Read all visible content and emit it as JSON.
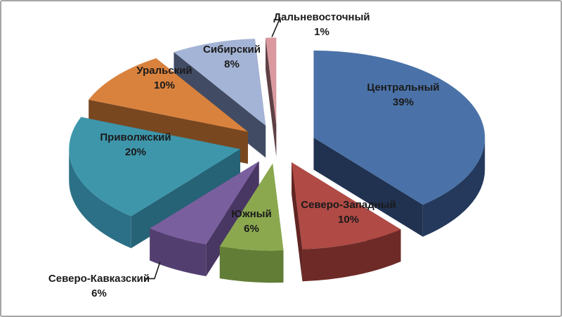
{
  "frame": {
    "background_color": "#FFFFFF",
    "border_color": "#A6A6A6"
  },
  "chart_data": {
    "type": "pie",
    "style": "3d-exploded",
    "title": "",
    "unit": "%",
    "legend": "none",
    "labels_format": "name + percent on slice",
    "slices": [
      {
        "key": "centralny",
        "label": "Центральный",
        "value": 39,
        "percent_label": "39%",
        "color_top": "#4A72A8",
        "color_side": "#24395B"
      },
      {
        "key": "severo-zapadny",
        "label": "Северо-Западный",
        "value": 10,
        "percent_label": "10%",
        "color_top": "#B04A45",
        "color_side": "#6E2A27"
      },
      {
        "key": "yuzhny",
        "label": "Южный",
        "value": 6,
        "percent_label": "6%",
        "color_top": "#8BA84F",
        "color_side": "#627D36"
      },
      {
        "key": "severo-kavkazsky",
        "label": "Северо-Кавказский",
        "value": 6,
        "percent_label": "6%",
        "color_top": "#7A5F9F",
        "color_side": "#523F70"
      },
      {
        "key": "privolzhsky",
        "label": "Приволжский",
        "value": 20,
        "percent_label": "20%",
        "color_top": "#3E96AB",
        "color_side": "#2B7086"
      },
      {
        "key": "uralsky",
        "label": "Уральский",
        "value": 10,
        "percent_label": "10%",
        "color_top": "#D9823E",
        "color_side": "#8A5123"
      },
      {
        "key": "sibirsky",
        "label": "Сибирский",
        "value": 8,
        "percent_label": "8%",
        "color_top": "#A4B4D6",
        "color_side": "#4A5570"
      },
      {
        "key": "dalnevostochny",
        "label": "Дальневосточный",
        "value": 1,
        "percent_label": "1%",
        "color_top": "#D9999F",
        "color_side": "#6B4A4E"
      }
    ]
  }
}
